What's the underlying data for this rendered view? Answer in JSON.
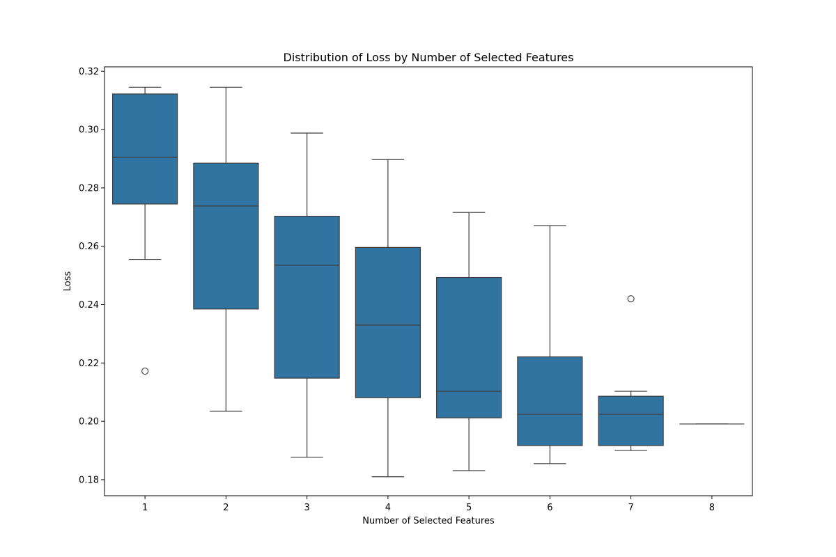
{
  "chart_data": {
    "type": "box",
    "title": "Distribution of Loss by Number of Selected Features",
    "xlabel": "Number of Selected Features",
    "ylabel": "Loss",
    "categories": [
      "1",
      "2",
      "3",
      "4",
      "5",
      "6",
      "7",
      "8"
    ],
    "boxes": [
      {
        "category": "1",
        "whisker_low": 0.2555,
        "q1": 0.2745,
        "median": 0.2905,
        "q3": 0.3122,
        "whisker_high": 0.3145,
        "outliers": [
          0.2172
        ]
      },
      {
        "category": "2",
        "whisker_low": 0.2035,
        "q1": 0.2385,
        "median": 0.2738,
        "q3": 0.2885,
        "whisker_high": 0.3145,
        "outliers": []
      },
      {
        "category": "3",
        "whisker_low": 0.1877,
        "q1": 0.2148,
        "median": 0.2535,
        "q3": 0.2703,
        "whisker_high": 0.2988,
        "outliers": []
      },
      {
        "category": "4",
        "whisker_low": 0.181,
        "q1": 0.2081,
        "median": 0.233,
        "q3": 0.2596,
        "whisker_high": 0.2897,
        "outliers": []
      },
      {
        "category": "5",
        "whisker_low": 0.1831,
        "q1": 0.2012,
        "median": 0.2103,
        "q3": 0.2493,
        "whisker_high": 0.2716,
        "outliers": []
      },
      {
        "category": "6",
        "whisker_low": 0.1855,
        "q1": 0.1917,
        "median": 0.2024,
        "q3": 0.2221,
        "whisker_high": 0.2671,
        "outliers": []
      },
      {
        "category": "7",
        "whisker_low": 0.19,
        "q1": 0.1917,
        "median": 0.2024,
        "q3": 0.2086,
        "whisker_high": 0.2103,
        "outliers": [
          0.242
        ]
      },
      {
        "category": "8",
        "whisker_low": 0.1991,
        "q1": 0.1991,
        "median": 0.1991,
        "q3": 0.1991,
        "whisker_high": 0.1991,
        "outliers": []
      }
    ],
    "yticks": [
      0.18,
      0.2,
      0.22,
      0.24,
      0.26,
      0.28,
      0.3,
      0.32
    ],
    "ytick_labels": [
      "0.18",
      "0.20",
      "0.22",
      "0.24",
      "0.26",
      "0.28",
      "0.30",
      "0.32"
    ],
    "ylim": [
      0.1745,
      0.3215
    ],
    "grid": false,
    "box_color": "#3274a1",
    "line_color": "#3b3b3b"
  }
}
